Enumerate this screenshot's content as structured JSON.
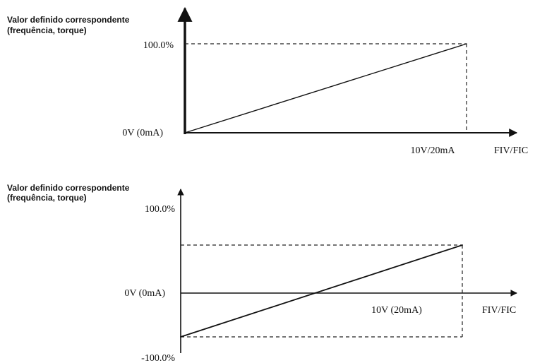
{
  "chart_data": [
    {
      "type": "line",
      "ylabel_line1": "Valor definido correspondente",
      "ylabel_line2": "(frequência, torque)",
      "xlabel": "FIV/FIC",
      "x_tick_labels": {
        "origin": "0V (0mA)",
        "max": "10V/20mA"
      },
      "y_tick_labels": {
        "max": "100.0%"
      },
      "series": [
        {
          "points": [
            {
              "x": 0,
              "y": 0
            },
            {
              "x": 10,
              "y": 100
            }
          ]
        }
      ],
      "xlim": [
        0,
        10
      ],
      "ylim": [
        0,
        100
      ],
      "grid": false
    },
    {
      "type": "line",
      "ylabel_line1": "Valor definido correspondente",
      "ylabel_line2": "(frequência, torque)",
      "xlabel": "FIV/FIC",
      "x_tick_labels": {
        "origin": "0V (0mA)",
        "max": "10V (20mA)"
      },
      "y_tick_labels": {
        "max": "100.0%",
        "min": "-100.0%"
      },
      "series": [
        {
          "points": [
            {
              "x": 0,
              "y": -100
            },
            {
              "x": 10,
              "y": 100
            }
          ]
        }
      ],
      "xlim": [
        0,
        10
      ],
      "ylim": [
        -100,
        100
      ],
      "grid": false
    }
  ]
}
